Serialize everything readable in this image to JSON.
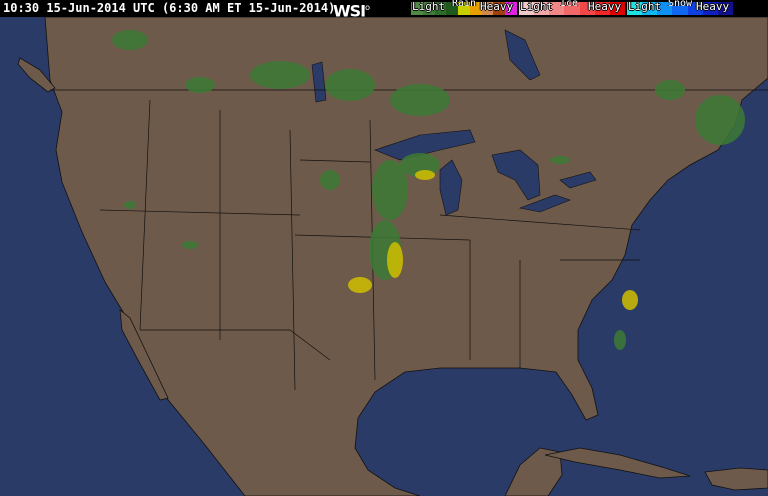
{
  "header": {
    "timestamp": "10:30 15-Jun-2014 UTC (6:30 AM ET 15-Jun-2014)",
    "logo": "WSI"
  },
  "legend": [
    {
      "title": "Rain",
      "light": "Light",
      "heavy": "Heavy",
      "colors": [
        "#4f8a45",
        "#3f7a38",
        "#2e6a2a",
        "#1f5a1c",
        "#c8d000",
        "#e8a000",
        "#d08a50",
        "#a04010",
        "#e020e0"
      ]
    },
    {
      "title": "Ice",
      "light": "Light",
      "heavy": "Heavy",
      "colors": [
        "#f0c8c8",
        "#f0a8a8",
        "#f08888",
        "#f06868",
        "#f04848",
        "#f02828",
        "#e00000"
      ]
    },
    {
      "title": "Snow",
      "light": "Light",
      "heavy": "Heavy",
      "colors": [
        "#20e0e0",
        "#10b8f0",
        "#1090f0",
        "#1068f0",
        "#1040e0",
        "#1020c0",
        "#101090"
      ]
    }
  ],
  "colors": {
    "ocean": "#2b3b68",
    "land": "#6e5a4a",
    "borders": "#111111",
    "radar_light": "#3d7a35",
    "radar_heavy": "#d0c000"
  }
}
